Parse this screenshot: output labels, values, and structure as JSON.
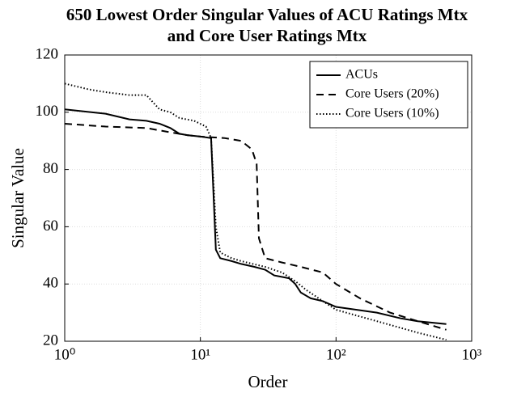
{
  "chart_data": {
    "type": "line",
    "title": [
      "650 Lowest Order Singular Values of ACU Ratings Mtx",
      "and Core User Ratings Mtx"
    ],
    "xlabel": "Order",
    "ylabel": "Singular Value",
    "xscale": "log",
    "xlim": [
      1,
      1000
    ],
    "xticks": [
      {
        "value": 1,
        "label": "10⁰"
      },
      {
        "value": 10,
        "label": "10¹"
      },
      {
        "value": 100,
        "label": "10²"
      },
      {
        "value": 1000,
        "label": "10³"
      }
    ],
    "ylim": [
      20,
      120
    ],
    "yticks": [
      20,
      40,
      60,
      80,
      100,
      120
    ],
    "grid": true,
    "legend": "upper right",
    "series": [
      {
        "name": "ACUs",
        "color": "#000000",
        "style": "solid",
        "x": [
          1,
          2,
          3,
          4,
          5,
          6,
          7,
          8,
          10,
          12,
          13,
          14,
          17,
          20,
          25,
          30,
          35,
          45,
          50,
          55,
          65,
          80,
          100,
          200,
          300,
          400,
          650
        ],
        "values": [
          101,
          99.5,
          97.5,
          97,
          96,
          94.5,
          92.5,
          92,
          91.5,
          91,
          52,
          49,
          48,
          47,
          46,
          45,
          43,
          42,
          40,
          37,
          35,
          34,
          32,
          30,
          28,
          27,
          26
        ]
      },
      {
        "name": "Core Users (20%)",
        "color": "#000000",
        "style": "dashed",
        "x": [
          1,
          2,
          4,
          6,
          8,
          10,
          15,
          20,
          24,
          26,
          27,
          30,
          40,
          55,
          80,
          100,
          150,
          250,
          400,
          650
        ],
        "values": [
          96,
          95,
          94.5,
          93,
          92,
          91.5,
          91,
          90,
          87,
          82,
          56,
          49,
          47.5,
          46,
          44,
          40,
          35,
          30,
          27,
          24
        ]
      },
      {
        "name": "Core Users (10%)",
        "color": "#000000",
        "style": "dotted",
        "x": [
          1,
          1.5,
          2,
          3,
          4,
          5,
          6,
          7,
          9,
          11,
          12,
          13,
          14,
          17,
          20,
          30,
          40,
          50,
          60,
          80,
          100,
          200,
          400,
          650
        ],
        "values": [
          110,
          108,
          107,
          106,
          106,
          101,
          100,
          98,
          97,
          95,
          91,
          60,
          51,
          49,
          48,
          46,
          44,
          41,
          38,
          34,
          31,
          27,
          23,
          20.5
        ]
      }
    ]
  }
}
